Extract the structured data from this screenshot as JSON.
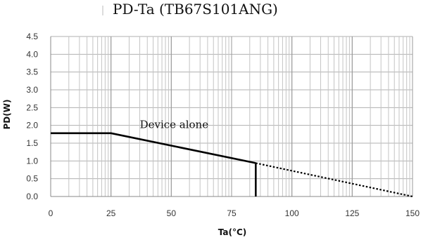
{
  "chart_data": {
    "type": "line",
    "title": "PD-Ta (TB67S101ANG)",
    "xlabel": "Ta(°C)",
    "ylabel": "PD(W)",
    "xlim": [
      0,
      150
    ],
    "ylim": [
      0,
      4.5
    ],
    "x_ticks": [
      0,
      25,
      50,
      75,
      100,
      125,
      150
    ],
    "x_tick_labels": [
      "0",
      "25",
      "50",
      "75",
      "100",
      "125",
      "150"
    ],
    "y_ticks": [
      0,
      0.5,
      1.0,
      1.5,
      2.0,
      2.5,
      3.0,
      3.5,
      4.0,
      4.5
    ],
    "y_tick_labels": [
      "0.0",
      "0.5",
      "1.0",
      "1.5",
      "2.0",
      "2.5",
      "3.0",
      "3.5",
      "4.0",
      "4.5"
    ],
    "grid": true,
    "series": [
      {
        "name": "Device alone",
        "style": "solid",
        "color": "#000000",
        "x": [
          0,
          25,
          85
        ],
        "y": [
          1.78,
          1.78,
          0.94
        ]
      },
      {
        "name": "",
        "style": "dotted",
        "color": "#000000",
        "x": [
          85,
          150
        ],
        "y": [
          0.94,
          0
        ]
      },
      {
        "name": "",
        "style": "solid",
        "color": "#000000",
        "x": [
          85,
          85
        ],
        "y": [
          0.94,
          0
        ]
      }
    ],
    "annotations": [
      {
        "text": "Device alone",
        "x": 50,
        "y": 1.9
      }
    ]
  }
}
